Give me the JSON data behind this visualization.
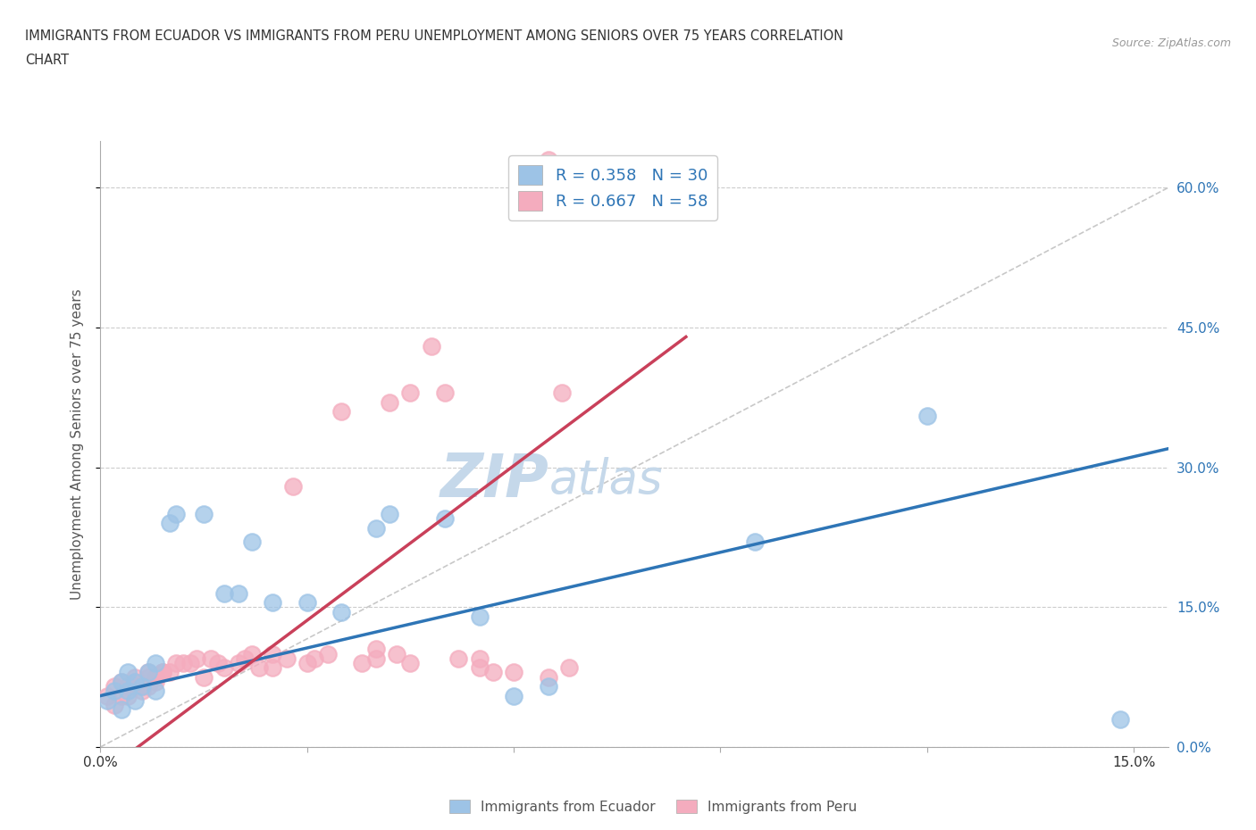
{
  "title_line1": "IMMIGRANTS FROM ECUADOR VS IMMIGRANTS FROM PERU UNEMPLOYMENT AMONG SENIORS OVER 75 YEARS CORRELATION",
  "title_line2": "CHART",
  "source": "Source: ZipAtlas.com",
  "ylabel": "Unemployment Among Seniors over 75 years",
  "ylim": [
    0.0,
    0.65
  ],
  "xlim": [
    0.0,
    0.155
  ],
  "yticks": [
    0.0,
    0.15,
    0.3,
    0.45,
    0.6
  ],
  "ytick_labels": [
    "0.0%",
    "15.0%",
    "30.0%",
    "45.0%",
    "60.0%"
  ],
  "xticks": [
    0.0,
    0.03,
    0.06,
    0.09,
    0.12,
    0.15
  ],
  "xtick_labels": [
    "0.0%",
    "",
    "",
    "",
    "",
    "15.0%"
  ],
  "ecuador_color": "#9dc3e6",
  "peru_color": "#f4acbe",
  "ecuador_line_color": "#2e75b6",
  "peru_line_color": "#c9405a",
  "ref_line_color": "#c8c8c8",
  "legend_text_color": "#2e75b6",
  "ecuador_R": 0.358,
  "ecuador_N": 30,
  "peru_R": 0.667,
  "peru_N": 58,
  "ecuador_scatter": [
    [
      0.001,
      0.05
    ],
    [
      0.002,
      0.06
    ],
    [
      0.003,
      0.04
    ],
    [
      0.003,
      0.07
    ],
    [
      0.004,
      0.06
    ],
    [
      0.004,
      0.08
    ],
    [
      0.005,
      0.07
    ],
    [
      0.005,
      0.05
    ],
    [
      0.006,
      0.065
    ],
    [
      0.007,
      0.08
    ],
    [
      0.008,
      0.09
    ],
    [
      0.008,
      0.06
    ],
    [
      0.01,
      0.24
    ],
    [
      0.011,
      0.25
    ],
    [
      0.015,
      0.25
    ],
    [
      0.018,
      0.165
    ],
    [
      0.02,
      0.165
    ],
    [
      0.022,
      0.22
    ],
    [
      0.025,
      0.155
    ],
    [
      0.03,
      0.155
    ],
    [
      0.035,
      0.145
    ],
    [
      0.04,
      0.235
    ],
    [
      0.042,
      0.25
    ],
    [
      0.05,
      0.245
    ],
    [
      0.055,
      0.14
    ],
    [
      0.06,
      0.055
    ],
    [
      0.065,
      0.065
    ],
    [
      0.095,
      0.22
    ],
    [
      0.12,
      0.355
    ],
    [
      0.148,
      0.03
    ]
  ],
  "peru_scatter": [
    [
      0.001,
      0.055
    ],
    [
      0.002,
      0.045
    ],
    [
      0.002,
      0.065
    ],
    [
      0.003,
      0.055
    ],
    [
      0.003,
      0.07
    ],
    [
      0.004,
      0.055
    ],
    [
      0.004,
      0.065
    ],
    [
      0.005,
      0.07
    ],
    [
      0.005,
      0.065
    ],
    [
      0.005,
      0.075
    ],
    [
      0.006,
      0.06
    ],
    [
      0.006,
      0.065
    ],
    [
      0.007,
      0.065
    ],
    [
      0.007,
      0.075
    ],
    [
      0.007,
      0.08
    ],
    [
      0.008,
      0.075
    ],
    [
      0.008,
      0.07
    ],
    [
      0.009,
      0.08
    ],
    [
      0.009,
      0.08
    ],
    [
      0.01,
      0.08
    ],
    [
      0.011,
      0.09
    ],
    [
      0.012,
      0.09
    ],
    [
      0.013,
      0.09
    ],
    [
      0.014,
      0.095
    ],
    [
      0.015,
      0.075
    ],
    [
      0.016,
      0.095
    ],
    [
      0.017,
      0.09
    ],
    [
      0.018,
      0.085
    ],
    [
      0.02,
      0.09
    ],
    [
      0.021,
      0.095
    ],
    [
      0.022,
      0.1
    ],
    [
      0.023,
      0.085
    ],
    [
      0.025,
      0.1
    ],
    [
      0.025,
      0.085
    ],
    [
      0.027,
      0.095
    ],
    [
      0.028,
      0.28
    ],
    [
      0.03,
      0.09
    ],
    [
      0.031,
      0.095
    ],
    [
      0.033,
      0.1
    ],
    [
      0.035,
      0.36
    ],
    [
      0.038,
      0.09
    ],
    [
      0.04,
      0.095
    ],
    [
      0.04,
      0.105
    ],
    [
      0.042,
      0.37
    ],
    [
      0.043,
      0.1
    ],
    [
      0.045,
      0.09
    ],
    [
      0.045,
      0.38
    ],
    [
      0.048,
      0.43
    ],
    [
      0.05,
      0.38
    ],
    [
      0.052,
      0.095
    ],
    [
      0.055,
      0.085
    ],
    [
      0.055,
      0.095
    ],
    [
      0.057,
      0.08
    ],
    [
      0.06,
      0.08
    ],
    [
      0.065,
      0.075
    ],
    [
      0.065,
      0.63
    ],
    [
      0.067,
      0.38
    ],
    [
      0.068,
      0.085
    ]
  ],
  "ecuador_line": [
    [
      0.0,
      0.055
    ],
    [
      0.155,
      0.32
    ]
  ],
  "peru_line": [
    [
      0.0,
      -0.03
    ],
    [
      0.085,
      0.44
    ]
  ],
  "ref_line": [
    [
      0.0,
      0.0
    ],
    [
      0.155,
      0.6
    ]
  ],
  "watermark_zip": "ZIP",
  "watermark_atlas": "atlas",
  "watermark_color": "#c5d8ea"
}
